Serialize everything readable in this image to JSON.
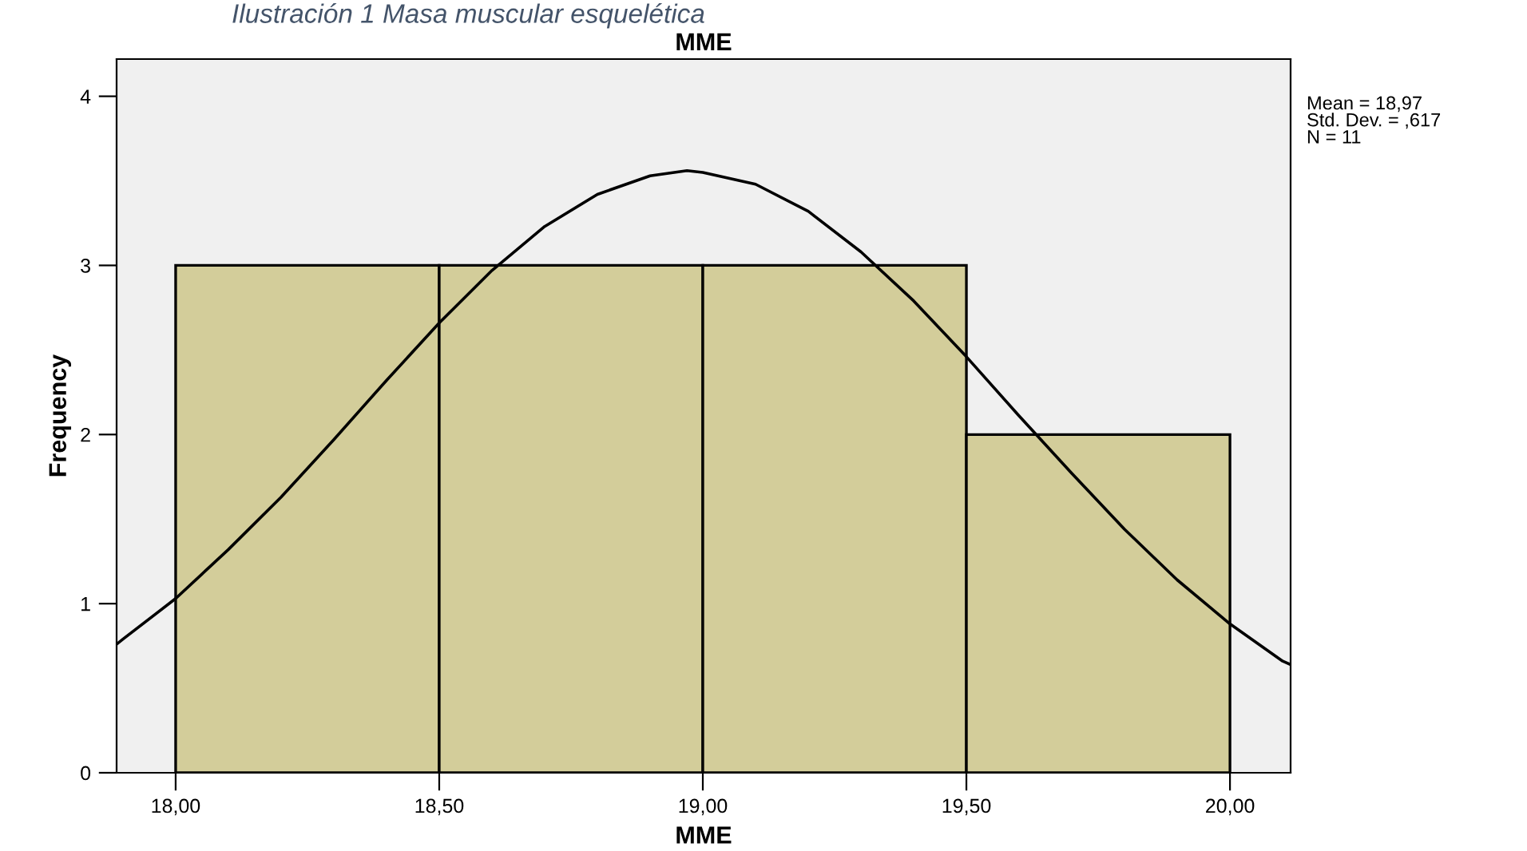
{
  "chart_data": {
    "type": "histogram",
    "title": "MME",
    "xlabel": "MME",
    "ylabel": "Frequency",
    "bins": [
      18.0,
      18.5,
      19.0,
      19.5,
      20.0
    ],
    "values": [
      3,
      3,
      3,
      2
    ],
    "color": "#d3cd9a",
    "series": [
      {
        "type": "line",
        "color": "#000000",
        "x": [
          17.888,
          17.9,
          18.0,
          18.1,
          18.2,
          18.3,
          18.4,
          18.5,
          18.6,
          18.7,
          18.8,
          18.9,
          18.97,
          19.0,
          19.1,
          19.2,
          19.3,
          19.4,
          19.5,
          19.6,
          19.7,
          19.8,
          19.9,
          20.0,
          20.1,
          20.115
        ],
        "values": [
          0.76,
          0.79,
          1.03,
          1.32,
          1.63,
          1.97,
          2.32,
          2.66,
          2.97,
          3.23,
          3.42,
          3.53,
          3.56,
          3.55,
          3.48,
          3.32,
          3.08,
          2.79,
          2.46,
          2.11,
          1.77,
          1.44,
          1.14,
          0.88,
          0.66,
          0.64
        ]
      }
    ],
    "xlim": [
      17.888,
      20.115
    ],
    "ylim": [
      0,
      4.22
    ],
    "xticks": [
      {
        "value": 18.0,
        "label": "18,00"
      },
      {
        "value": 18.5,
        "label": "18,50"
      },
      {
        "value": 19.0,
        "label": "19,00"
      },
      {
        "value": 19.5,
        "label": "19,50"
      },
      {
        "value": 20.0,
        "label": "20,00"
      }
    ],
    "yticks": [
      0,
      1,
      2,
      3,
      4
    ],
    "grid": false,
    "legend": false,
    "annotations": [
      "Ilustración 1 Masa muscular esquelética",
      "Mean = 18,97\nStd. Dev. = ,617\nN = 11"
    ]
  }
}
